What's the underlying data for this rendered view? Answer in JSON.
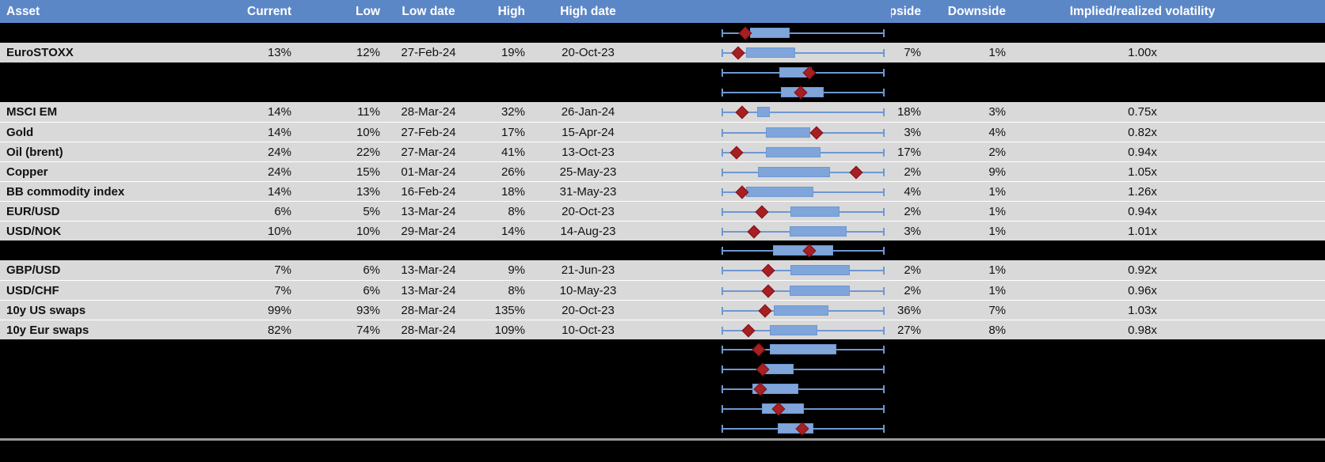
{
  "header": {
    "columns": [
      "Asset",
      "Current",
      "Low",
      "Low date",
      "High",
      "High date",
      "Upside",
      "Downside",
      "Implied/realized volatility"
    ]
  },
  "colors": {
    "header_bg": "#5c87c7",
    "row_gray": "#d9d9d9",
    "row_black": "#000000",
    "box_fill": "#7fa5da",
    "box_line": "#6d98d3",
    "diamond": "#a61f23",
    "separator": "#9a9a9a"
  },
  "chart_data": {
    "type": "boxplot-rows",
    "note": "per-row normalized range plot: whisker always spans 0-1, box = shaded range, marker = red diamond position",
    "rows_markers": [
      0.146,
      0.102,
      0.539,
      0.485,
      0.126,
      0.583,
      0.092,
      0.825,
      0.126,
      0.248,
      0.199,
      0.539,
      0.286,
      0.286,
      0.267,
      0.165,
      0.228,
      0.252,
      0.238,
      0.35,
      0.495
    ]
  },
  "rows": [
    {
      "type": "hidden",
      "box": {
        "lo": 0.175,
        "hi": 0.417,
        "d": 0.146
      }
    },
    {
      "type": "data",
      "asset": "EuroSTOXX",
      "current": "13%",
      "low": "12%",
      "low_date": "27-Feb-24",
      "high": "19%",
      "high_date": "20-Oct-23",
      "upside": "7%",
      "downside": "1%",
      "ratio": "1.00x",
      "box": {
        "lo": 0.15,
        "hi": 0.451,
        "d": 0.102
      }
    },
    {
      "type": "hidden",
      "box": {
        "lo": 0.354,
        "hi": 0.553,
        "d": 0.539
      }
    },
    {
      "type": "hidden",
      "box": {
        "lo": 0.364,
        "hi": 0.626,
        "d": 0.485
      }
    },
    {
      "type": "data",
      "asset": "MSCI EM",
      "current": "14%",
      "low": "11%",
      "low_date": "28-Mar-24",
      "high": "32%",
      "high_date": "26-Jan-24",
      "upside": "18%",
      "downside": "3%",
      "ratio": "0.75x",
      "box": {
        "lo": 0.218,
        "hi": 0.296,
        "d": 0.126
      }
    },
    {
      "type": "data",
      "asset": "Gold",
      "current": "14%",
      "low": "10%",
      "low_date": "27-Feb-24",
      "high": "17%",
      "high_date": "15-Apr-24",
      "upside": "3%",
      "downside": "4%",
      "ratio": "0.82x",
      "box": {
        "lo": 0.272,
        "hi": 0.544,
        "d": 0.583
      }
    },
    {
      "type": "data",
      "asset": "Oil (brent)",
      "current": "24%",
      "low": "22%",
      "low_date": "27-Mar-24",
      "high": "41%",
      "high_date": "13-Oct-23",
      "upside": "17%",
      "downside": "2%",
      "ratio": "0.94x",
      "box": {
        "lo": 0.272,
        "hi": 0.607,
        "d": 0.092
      }
    },
    {
      "type": "data",
      "asset": "Copper",
      "current": "24%",
      "low": "15%",
      "low_date": "01-Mar-24",
      "high": "26%",
      "high_date": "25-May-23",
      "upside": "2%",
      "downside": "9%",
      "ratio": "1.05x",
      "box": {
        "lo": 0.223,
        "hi": 0.665,
        "d": 0.825
      }
    },
    {
      "type": "data",
      "asset": "BB commodity index",
      "current": "14%",
      "low": "13%",
      "low_date": "16-Feb-24",
      "high": "18%",
      "high_date": "31-May-23",
      "upside": "4%",
      "downside": "1%",
      "ratio": "1.26x",
      "box": {
        "lo": 0.15,
        "hi": 0.563,
        "d": 0.126
      }
    },
    {
      "type": "data",
      "asset": "EUR/USD",
      "current": "6%",
      "low": "5%",
      "low_date": "13-Mar-24",
      "high": "8%",
      "high_date": "20-Oct-23",
      "upside": "2%",
      "downside": "1%",
      "ratio": "0.94x",
      "box": {
        "lo": 0.422,
        "hi": 0.723,
        "d": 0.248
      }
    },
    {
      "type": "data",
      "asset": "USD/NOK",
      "current": "10%",
      "low": "10%",
      "low_date": "29-Mar-24",
      "high": "14%",
      "high_date": "14-Aug-23",
      "upside": "3%",
      "downside": "1%",
      "ratio": "1.01x",
      "box": {
        "lo": 0.417,
        "hi": 0.767,
        "d": 0.199
      }
    },
    {
      "type": "hidden",
      "box": {
        "lo": 0.316,
        "hi": 0.684,
        "d": 0.539
      }
    },
    {
      "type": "data",
      "asset": "GBP/USD",
      "current": "7%",
      "low": "6%",
      "low_date": "13-Mar-24",
      "high": "9%",
      "high_date": "21-Jun-23",
      "upside": "2%",
      "downside": "1%",
      "ratio": "0.92x",
      "box": {
        "lo": 0.422,
        "hi": 0.786,
        "d": 0.286
      }
    },
    {
      "type": "data",
      "asset": "USD/CHF",
      "current": "7%",
      "low": "6%",
      "low_date": "13-Mar-24",
      "high": "8%",
      "high_date": "10-May-23",
      "upside": "2%",
      "downside": "1%",
      "ratio": "0.96x",
      "box": {
        "lo": 0.417,
        "hi": 0.786,
        "d": 0.286
      }
    },
    {
      "type": "data",
      "asset": "10y US swaps",
      "current": "99%",
      "low": "93%",
      "low_date": "28-Mar-24",
      "high": "135%",
      "high_date": "20-Oct-23",
      "upside": "36%",
      "downside": "7%",
      "ratio": "1.03x",
      "box": {
        "lo": 0.32,
        "hi": 0.655,
        "d": 0.267
      }
    },
    {
      "type": "data",
      "asset": "10y Eur swaps",
      "current": "82%",
      "low": "74%",
      "low_date": "28-Mar-24",
      "high": "109%",
      "high_date": "10-Oct-23",
      "upside": "27%",
      "downside": "8%",
      "ratio": "0.98x",
      "box": {
        "lo": 0.296,
        "hi": 0.587,
        "d": 0.165
      }
    },
    {
      "type": "hidden",
      "box": {
        "lo": 0.296,
        "hi": 0.704,
        "d": 0.228
      }
    },
    {
      "type": "hidden",
      "box": {
        "lo": 0.262,
        "hi": 0.442,
        "d": 0.252
      }
    },
    {
      "type": "hidden",
      "box": {
        "lo": 0.189,
        "hi": 0.471,
        "d": 0.238
      }
    },
    {
      "type": "hidden",
      "box": {
        "lo": 0.248,
        "hi": 0.505,
        "d": 0.35
      }
    },
    {
      "type": "hidden",
      "box": {
        "lo": 0.345,
        "hi": 0.563,
        "d": 0.495
      }
    }
  ]
}
